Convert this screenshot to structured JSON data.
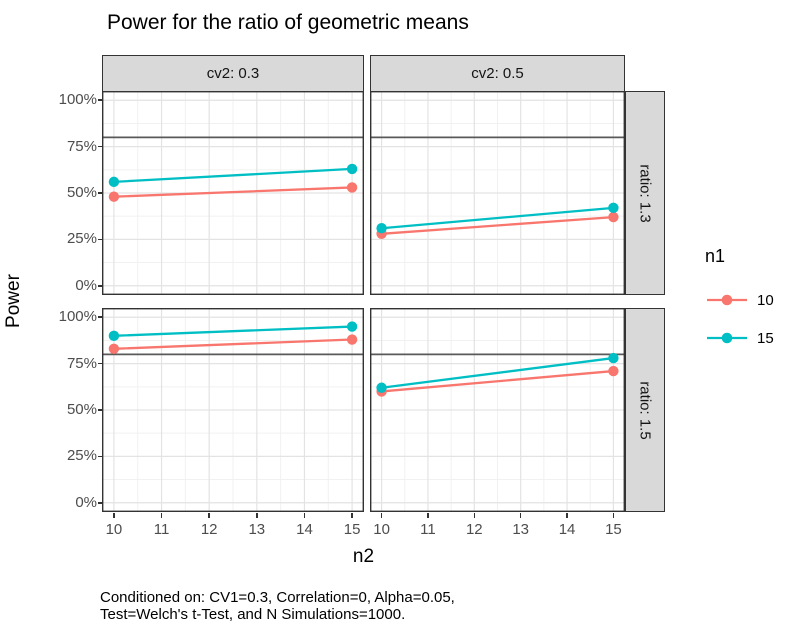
{
  "chart_data": {
    "type": "line",
    "title": "Power for the ratio of geometric means",
    "xlabel": "n2",
    "ylabel": "Power",
    "caption_lines": [
      "Conditioned on: CV1=0.3, Correlation=0, Alpha=0.05,",
      "Test=Welch's t-Test, and N Simulations=1000."
    ],
    "legend": {
      "title": "n1",
      "entries": [
        {
          "label": "10",
          "color": "#F8766D"
        },
        {
          "label": "15",
          "color": "#00BFC4"
        }
      ]
    },
    "col_labels": [
      "cv2: 0.3",
      "cv2: 0.5"
    ],
    "row_labels": [
      "ratio: 1.3",
      "ratio: 1.5"
    ],
    "x": [
      10,
      15
    ],
    "xticks": [
      10,
      11,
      12,
      13,
      14,
      15
    ],
    "yticks": [
      0,
      25,
      50,
      75,
      100
    ],
    "ytick_format": "%",
    "xlim": [
      10,
      15
    ],
    "ylim": [
      0,
      100
    ],
    "reference_line_y": 80,
    "grid": "on",
    "legend_position": "right",
    "facets": [
      {
        "col": "cv2: 0.3",
        "row": "ratio: 1.3",
        "series": [
          {
            "name": "10",
            "values": [
              48,
              53
            ]
          },
          {
            "name": "15",
            "values": [
              56,
              63
            ]
          }
        ]
      },
      {
        "col": "cv2: 0.5",
        "row": "ratio: 1.3",
        "series": [
          {
            "name": "10",
            "values": [
              28,
              37
            ]
          },
          {
            "name": "15",
            "values": [
              31,
              42
            ]
          }
        ]
      },
      {
        "col": "cv2: 0.3",
        "row": "ratio: 1.5",
        "series": [
          {
            "name": "10",
            "values": [
              83,
              88
            ]
          },
          {
            "name": "15",
            "values": [
              90,
              95
            ]
          }
        ]
      },
      {
        "col": "cv2: 0.5",
        "row": "ratio: 1.5",
        "series": [
          {
            "name": "10",
            "values": [
              60,
              71
            ]
          },
          {
            "name": "15",
            "values": [
              62,
              78
            ]
          }
        ]
      }
    ],
    "colors": {
      "reference_line": "#595959",
      "panel_border": "#333333",
      "grid_major": "#e3e3e3",
      "grid_minor": "#f1f1f1",
      "strip_background": "#d9d9d9",
      "axis_text": "#4d4d4d"
    }
  }
}
